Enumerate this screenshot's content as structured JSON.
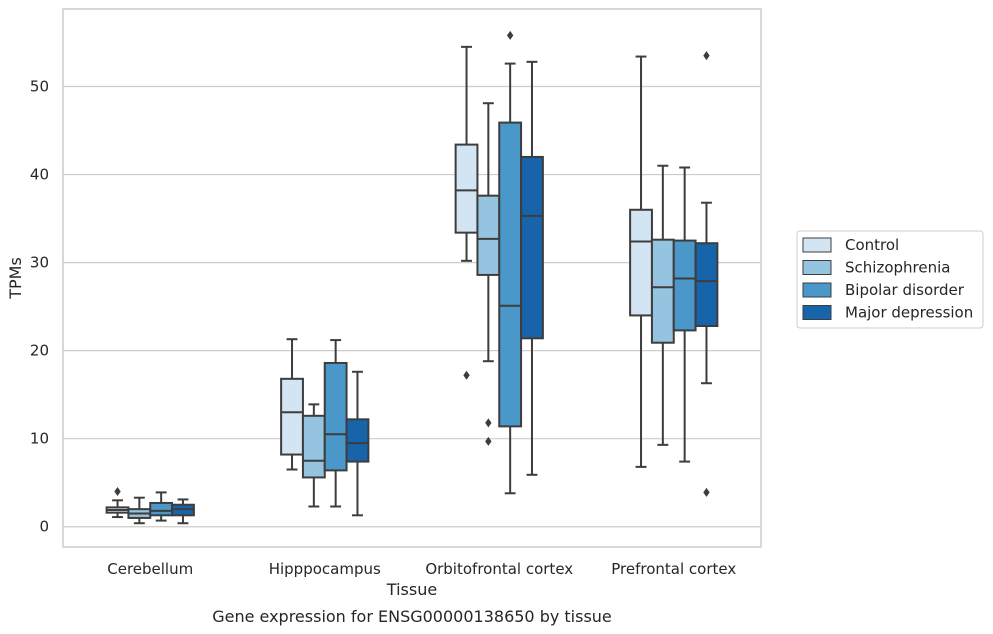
{
  "chart_data": {
    "type": "box",
    "title": "Gene expression for ENSG00000138650 by tissue",
    "xlabel": "Tissue",
    "ylabel": "TPMs",
    "ylim": [
      -2.3,
      58.8
    ],
    "yticks": [
      0,
      10,
      20,
      30,
      40,
      50
    ],
    "grid": true,
    "legend_position": "right",
    "categories": [
      "Cerebellum",
      "Hipppocampus",
      "Orbitofrontal cortex",
      "Prefrontal cortex"
    ],
    "series": [
      {
        "name": "Control",
        "color": "#d3e4f3",
        "boxes": [
          {
            "min": 1.1,
            "q1": 1.6,
            "median": 1.9,
            "q3": 2.2,
            "max": 3.0,
            "outliers": [
              4.0
            ]
          },
          {
            "min": 6.5,
            "q1": 8.2,
            "median": 13.0,
            "q3": 16.8,
            "max": 21.3,
            "outliers": []
          },
          {
            "min": 30.2,
            "q1": 33.4,
            "median": 38.2,
            "q3": 43.4,
            "max": 54.5,
            "outliers": [
              17.2
            ]
          },
          {
            "min": 6.8,
            "q1": 24.0,
            "median": 32.4,
            "q3": 36.0,
            "max": 53.4,
            "outliers": []
          }
        ]
      },
      {
        "name": "Schizophrenia",
        "color": "#94c4df",
        "boxes": [
          {
            "min": 0.4,
            "q1": 1.0,
            "median": 1.5,
            "q3": 2.0,
            "max": 3.3,
            "outliers": []
          },
          {
            "min": 2.3,
            "q1": 5.6,
            "median": 7.5,
            "q3": 12.6,
            "max": 13.9,
            "outliers": []
          },
          {
            "min": 18.8,
            "q1": 28.6,
            "median": 32.7,
            "q3": 37.6,
            "max": 48.1,
            "outliers": [
              11.8,
              9.7
            ]
          },
          {
            "min": 9.3,
            "q1": 20.9,
            "median": 27.2,
            "q3": 32.6,
            "max": 41.0,
            "outliers": []
          }
        ]
      },
      {
        "name": "Bipolar disorder",
        "color": "#4a98c9",
        "boxes": [
          {
            "min": 0.7,
            "q1": 1.3,
            "median": 1.8,
            "q3": 2.7,
            "max": 3.9,
            "outliers": []
          },
          {
            "min": 2.3,
            "q1": 6.4,
            "median": 10.5,
            "q3": 18.6,
            "max": 21.2,
            "outliers": []
          },
          {
            "min": 3.8,
            "q1": 11.4,
            "median": 25.1,
            "q3": 45.9,
            "max": 52.6,
            "outliers": [
              55.8
            ]
          },
          {
            "min": 7.4,
            "q1": 22.3,
            "median": 28.2,
            "q3": 32.5,
            "max": 40.8,
            "outliers": []
          }
        ]
      },
      {
        "name": "Major depression",
        "color": "#1764ab",
        "boxes": [
          {
            "min": 0.4,
            "q1": 1.3,
            "median": 2.0,
            "q3": 2.5,
            "max": 3.1,
            "outliers": []
          },
          {
            "min": 1.3,
            "q1": 7.4,
            "median": 9.5,
            "q3": 12.2,
            "max": 17.6,
            "outliers": []
          },
          {
            "min": 5.9,
            "q1": 21.4,
            "median": 35.3,
            "q3": 42.0,
            "max": 52.8,
            "outliers": []
          },
          {
            "min": 16.3,
            "q1": 22.8,
            "median": 27.9,
            "q3": 32.2,
            "max": 36.8,
            "outliers": [
              53.5,
              3.9
            ]
          }
        ]
      }
    ]
  }
}
